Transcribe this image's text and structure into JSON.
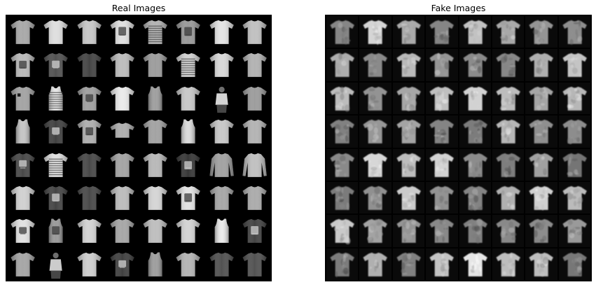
{
  "panels": [
    {
      "title": "Real Images",
      "rows": 8,
      "cols": 8,
      "kind": "real",
      "garment_types": [
        [
          "tshirt",
          "tshirt",
          "tshirt",
          "tshirt-print",
          "tshirt-stripe",
          "tshirt-print",
          "tshirt",
          "tshirt"
        ],
        [
          "tshirt-print",
          "tshirt-dark-print",
          "tshirt-dark",
          "tshirt",
          "tshirt",
          "tshirt-stripe",
          "tshirt",
          "tshirt"
        ],
        [
          "tshirt-pocket",
          "tank-stripe",
          "tshirt-print",
          "tshirt-light",
          "tank",
          "tshirt",
          "model",
          "tshirt"
        ],
        [
          "tank-long",
          "tshirt-dark-print",
          "tshirt-print",
          "crop",
          "tshirt",
          "tank",
          "tshirt",
          "tshirt"
        ],
        [
          "tshirt-dark-print",
          "tshirt-stripe",
          "tshirt-dark",
          "tshirt",
          "tshirt",
          "tshirt-dark-print",
          "longsleeve",
          "longsleeve"
        ],
        [
          "tshirt",
          "tshirt-dark-print",
          "tshirt-dark",
          "tshirt",
          "tshirt",
          "tshirt-print",
          "tshirt",
          "tshirt"
        ],
        [
          "tshirt-print",
          "tank-print",
          "tshirt",
          "tshirt",
          "tshirt",
          "tshirt",
          "tank-bright",
          "tshirt-dark-print"
        ],
        [
          "tshirt",
          "model",
          "tshirt",
          "tshirt-dark-print",
          "tank",
          "tshirt",
          "tshirt-dark",
          "tshirt-dark"
        ]
      ]
    },
    {
      "title": "Fake Images",
      "rows": 8,
      "cols": 8,
      "kind": "fake"
    }
  ]
}
